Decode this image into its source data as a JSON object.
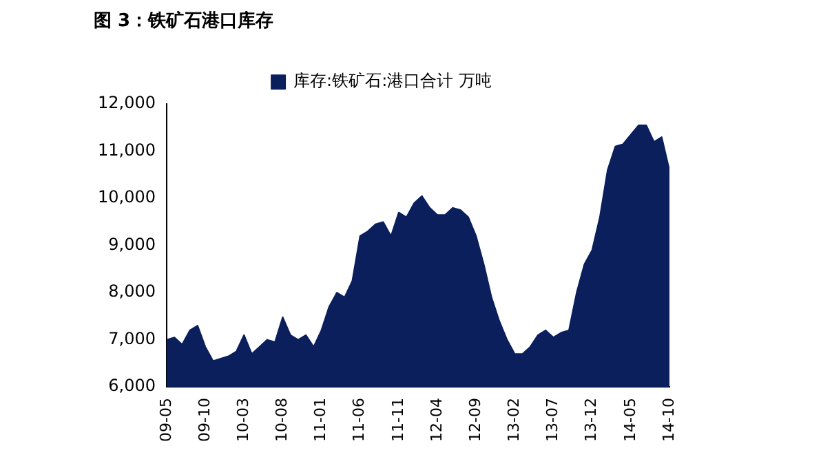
{
  "chart_data": {
    "type": "area",
    "title": "图 3：铁矿石港口库存",
    "x": [
      "2009-05",
      "2009-06",
      "2009-07",
      "2009-08",
      "2009-09",
      "2009-10",
      "2009-11",
      "2009-12",
      "2010-01",
      "2010-02",
      "2010-03",
      "2010-04",
      "2010-05",
      "2010-06",
      "2010-07",
      "2010-08",
      "2010-09",
      "2010-10",
      "2010-11",
      "2010-12",
      "2011-01",
      "2011-02",
      "2011-03",
      "2011-04",
      "2011-05",
      "2011-06",
      "2011-07",
      "2011-08",
      "2011-09",
      "2011-10",
      "2011-11",
      "2011-12",
      "2012-01",
      "2012-02",
      "2012-03",
      "2012-04",
      "2012-05",
      "2012-06",
      "2012-07",
      "2012-08",
      "2012-09",
      "2012-10",
      "2012-11",
      "2012-12",
      "2013-01",
      "2013-02",
      "2013-03",
      "2013-04",
      "2013-05",
      "2013-06",
      "2013-07",
      "2013-08",
      "2013-09",
      "2013-10",
      "2013-11",
      "2013-12",
      "2014-01",
      "2014-02",
      "2014-03",
      "2014-04",
      "2014-05",
      "2014-06",
      "2014-07",
      "2014-08",
      "2014-09",
      "2014-10"
    ],
    "series": [
      {
        "name": "库存:铁矿石:港口合计 万吨",
        "color": "#0a1f5c",
        "values": [
          7000,
          7050,
          6900,
          7200,
          7300,
          6850,
          6550,
          6600,
          6650,
          6750,
          7100,
          6700,
          6850,
          7000,
          6950,
          7480,
          7100,
          7000,
          7100,
          6850,
          7200,
          7700,
          8000,
          7900,
          8250,
          9200,
          9300,
          9450,
          9500,
          9200,
          9700,
          9600,
          9900,
          10050,
          9800,
          9650,
          9650,
          9800,
          9750,
          9600,
          9200,
          8600,
          7900,
          7400,
          7000,
          6700,
          6700,
          6850,
          7100,
          7200,
          7050,
          7150,
          7200,
          8000,
          8600,
          8900,
          9600,
          10600,
          11100,
          11150,
          11350,
          11550,
          11550,
          11200,
          11300,
          10600
        ]
      }
    ],
    "xlim": [
      "2009-05",
      "2014-10"
    ],
    "xticks": [
      {
        "value": "2009-05",
        "label": "09-05"
      },
      {
        "value": "2009-10",
        "label": "09-10"
      },
      {
        "value": "2010-03",
        "label": "10-03"
      },
      {
        "value": "2010-08",
        "label": "10-08"
      },
      {
        "value": "2011-01",
        "label": "11-01"
      },
      {
        "value": "2011-06",
        "label": "11-06"
      },
      {
        "value": "2011-11",
        "label": "11-11"
      },
      {
        "value": "2012-04",
        "label": "12-04"
      },
      {
        "value": "2012-09",
        "label": "12-09"
      },
      {
        "value": "2013-02",
        "label": "13-02"
      },
      {
        "value": "2013-07",
        "label": "13-07"
      },
      {
        "value": "2013-12",
        "label": "13-12"
      },
      {
        "value": "2014-05",
        "label": "14-05"
      },
      {
        "value": "2014-10",
        "label": "14-10"
      }
    ],
    "ylim": [
      6000,
      12000
    ],
    "yticks": [
      {
        "value": 6000,
        "label": "6,000"
      },
      {
        "value": 7000,
        "label": "7,000"
      },
      {
        "value": 8000,
        "label": "8,000"
      },
      {
        "value": 9000,
        "label": "9,000"
      },
      {
        "value": 10000,
        "label": "10,000"
      },
      {
        "value": 11000,
        "label": "11,000"
      },
      {
        "value": 12000,
        "label": "12,000"
      }
    ],
    "grid": false,
    "legend": "top"
  }
}
